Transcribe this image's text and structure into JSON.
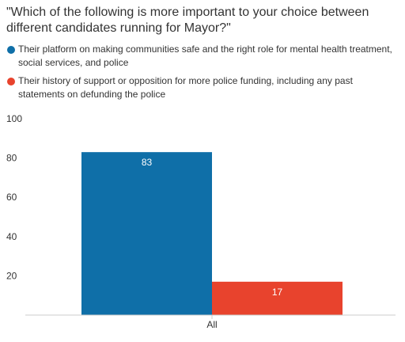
{
  "chart_data": {
    "type": "bar",
    "title": "\"Which of the following is more important to your choice between different candidates running for Mayor?\"",
    "categories": [
      "All"
    ],
    "series": [
      {
        "name": "Their platform on making communities safe and the right role for mental health treatment, social services, and police",
        "color": "#0f6fa8",
        "values": [
          83
        ]
      },
      {
        "name": "Their history of support or opposition for more police funding, including any past statements on defunding the police",
        "color": "#e8432d",
        "values": [
          17
        ]
      }
    ],
    "ylim": [
      0,
      100
    ],
    "yticks": [
      20,
      40,
      60,
      80,
      100
    ],
    "grid": false,
    "legend_position": "top-left"
  }
}
